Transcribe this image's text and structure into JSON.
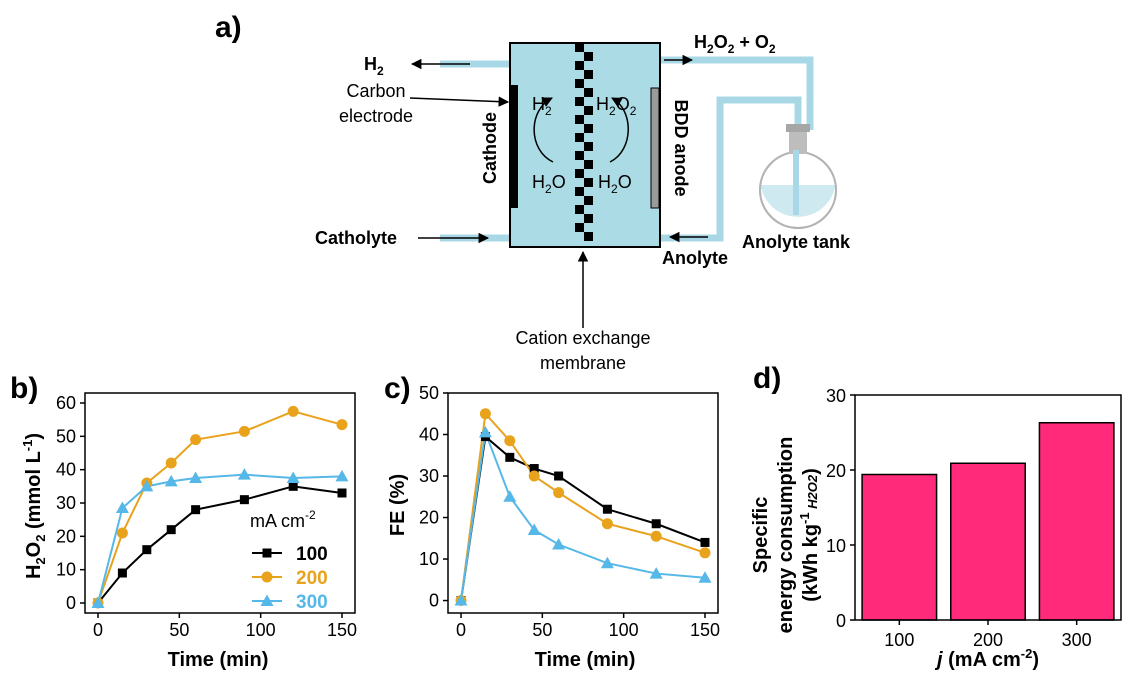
{
  "panels": {
    "a": "a)",
    "b": "b)",
    "c": "c)",
    "d": "d)"
  },
  "schematic": {
    "h2_out": "H",
    "h2_out_sub": "2",
    "carbon_electrode_1": "Carbon",
    "carbon_electrode_2": "electrode",
    "h2o2_o2": "H",
    "h2o2_o2_sub1": "2",
    "h2o2_o2_mid": "O",
    "h2o2_o2_sub2": "2",
    "h2o2_o2_tail": " + O",
    "h2o2_o2_sub3": "2",
    "cathode": "Cathode",
    "bdd_anode": "BDD anode",
    "cathode_product": "H",
    "cathode_product_sub": "2",
    "anode_product": "H",
    "anode_product_sub1": "2",
    "anode_product_mid": "O",
    "anode_product_sub2": "2",
    "water_left": "H",
    "water_left_sub": "2",
    "water_left_tail": "O",
    "water_right": "H",
    "water_right_sub": "2",
    "water_right_tail": "O",
    "catholyte": "Catholyte",
    "anolyte": "Anolyte",
    "anolyte_tank": "Anolyte tank",
    "membrane_1": "Cation exchange",
    "membrane_2": "membrane",
    "colors": {
      "cell": "#abdce6",
      "pipe": "#a8d8e5",
      "membrane": "#000000",
      "cathode": "#000000",
      "anode": "#9a9a9a"
    }
  },
  "chart_data": [
    {
      "type": "line",
      "panel": "b)",
      "x": [
        0,
        15,
        30,
        45,
        60,
        90,
        120,
        150
      ],
      "xlim": [
        -8,
        158
      ],
      "ylim": [
        -3,
        63
      ],
      "xticks": [
        "0",
        "50",
        "100",
        "150"
      ],
      "yticks": [
        "0",
        "10",
        "20",
        "30",
        "40",
        "50",
        "60"
      ],
      "xlabel": "Time (min)",
      "ylabel": "H2O2 (mmol L-1)",
      "legend_title": "mA cm-2",
      "legend_position": "bottom-right",
      "series": [
        {
          "name": "100",
          "color": "#000000",
          "marker": "square",
          "values": [
            0,
            9,
            16,
            22,
            28,
            31,
            35,
            33
          ]
        },
        {
          "name": "200",
          "color": "#e8a21c",
          "marker": "circle",
          "values": [
            0,
            21,
            36,
            42,
            49,
            51.5,
            57.5,
            53.5
          ]
        },
        {
          "name": "300",
          "color": "#55b8e8",
          "marker": "triangle",
          "values": [
            0,
            28.5,
            35,
            36.5,
            37.5,
            38.5,
            37.5,
            38
          ]
        }
      ]
    },
    {
      "type": "line",
      "panel": "c)",
      "x": [
        0,
        15,
        30,
        45,
        60,
        90,
        120,
        150
      ],
      "xlim": [
        -8,
        158
      ],
      "ylim": [
        -3,
        50
      ],
      "xticks": [
        "0",
        "50",
        "100",
        "150"
      ],
      "yticks": [
        "0",
        "10",
        "20",
        "30",
        "40",
        "50"
      ],
      "xlabel": "Time (min)",
      "ylabel": "FE (%)",
      "series": [
        {
          "name": "100",
          "color": "#000000",
          "marker": "square",
          "values": [
            0,
            39.5,
            34.5,
            31.8,
            30,
            22,
            18.5,
            14
          ]
        },
        {
          "name": "200",
          "color": "#e8a21c",
          "marker": "circle",
          "values": [
            0,
            45,
            38.5,
            30,
            26,
            18.5,
            15.5,
            11.5
          ]
        },
        {
          "name": "300",
          "color": "#55b8e8",
          "marker": "triangle",
          "values": [
            0,
            40.5,
            25,
            17,
            13.5,
            9,
            6.5,
            5.5
          ]
        }
      ]
    },
    {
      "type": "bar",
      "panel": "d)",
      "categories": [
        "100",
        "200",
        "300"
      ],
      "values": [
        19.4,
        20.9,
        26.3
      ],
      "ylim": [
        0,
        30
      ],
      "yticks": [
        "0",
        "10",
        "20",
        "30"
      ],
      "xlabel": "j (mA cm-2)",
      "ylabel_1": "Specific",
      "ylabel_2": "energy consumption",
      "ylabel_3": "(kWh kg-1 H2O2)",
      "bar_color": "#ff2a7a"
    }
  ]
}
